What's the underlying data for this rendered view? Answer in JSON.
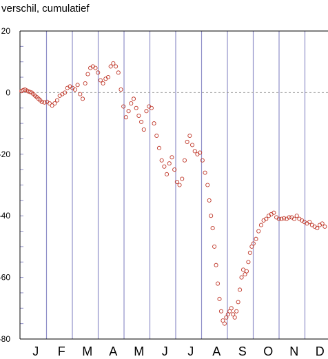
{
  "chart_data": {
    "type": "scatter",
    "title": "verschil, cumulatief",
    "xlabel": "",
    "ylabel": "",
    "ylim": [
      -80,
      20
    ],
    "yticks": [
      20,
      0,
      -20,
      -40,
      -60,
      -80
    ],
    "ytick_labels": [
      "20",
      "0",
      "-20",
      "-40",
      "-60",
      "-80"
    ],
    "xtick_labels": [
      "J",
      "F",
      "M",
      "A",
      "M",
      "J",
      "J",
      "A",
      "S",
      "O",
      "N",
      "D"
    ],
    "zero_line": "dashed",
    "grid": "vertical month lines",
    "marker": "open circle",
    "colors": {
      "marker": "#c0392b",
      "grid": "#8f8fc8",
      "zero": "#999999",
      "axis": "#000000"
    },
    "series": [
      {
        "x": [
          1,
          3,
          5,
          7,
          9,
          11,
          13,
          15,
          17,
          19,
          21,
          23,
          25,
          28,
          31,
          34,
          37,
          40,
          43,
          46,
          49,
          52,
          55,
          58,
          61,
          64,
          67,
          70,
          73,
          76,
          79,
          82,
          85,
          88,
          91,
          94,
          97,
          100,
          103,
          106,
          109,
          112,
          115,
          118,
          121,
          124,
          127,
          130,
          133,
          136,
          139,
          142,
          145,
          148,
          151,
          154,
          157,
          160,
          163,
          166,
          169,
          172,
          175,
          178,
          181,
          184,
          187,
          190,
          193,
          196,
          199,
          202,
          205,
          208,
          211,
          214,
          217,
          220,
          222,
          224,
          226,
          228,
          230,
          232,
          234,
          236,
          238,
          240,
          242,
          244,
          246,
          248,
          250,
          252,
          254,
          256,
          258,
          260,
          262,
          264,
          266,
          268,
          270,
          272,
          274,
          277,
          280,
          283,
          286,
          289,
          292,
          295,
          298,
          301,
          304,
          307,
          310,
          313,
          316,
          319,
          322,
          325,
          328,
          331,
          334,
          337,
          340,
          343,
          346,
          349,
          352,
          355,
          358,
          361,
          364
        ],
        "y": [
          0.5,
          0.8,
          1.0,
          0.7,
          0.4,
          0.2,
          0.0,
          -0.5,
          -1.0,
          -1.5,
          -2.0,
          -2.5,
          -3.0,
          -3.2,
          -3.0,
          -3.5,
          -4.2,
          -3.5,
          -2.5,
          -1.0,
          -0.5,
          0.0,
          1.5,
          2.0,
          1.5,
          1.0,
          2.5,
          -0.5,
          -2.0,
          3.0,
          6.0,
          8.0,
          8.5,
          8.0,
          6.5,
          4.0,
          3.0,
          4.5,
          5.0,
          8.5,
          9.5,
          8.5,
          6.5,
          1.0,
          -4.5,
          -8.0,
          -6.0,
          -3.5,
          -2.0,
          -5.0,
          -7.5,
          -9.5,
          -12.0,
          -6.0,
          -4.5,
          -5.0,
          -10.0,
          -14.0,
          -18.0,
          -22.0,
          -24.0,
          -26.5,
          -23.0,
          -21.0,
          -25.0,
          -29.0,
          -30.0,
          -28.0,
          -22.0,
          -16.0,
          -14.0,
          -17.0,
          -19.0,
          -20.0,
          -19.5,
          -22.0,
          -26.0,
          -30.0,
          -35.0,
          -40.0,
          -44.0,
          -50.0,
          -56.0,
          -62.0,
          -67.0,
          -71.0,
          -74.0,
          -75.0,
          -73.0,
          -72.0,
          -71.0,
          -70.0,
          -72.0,
          -73.0,
          -71.0,
          -68.0,
          -64.0,
          -60.0,
          -57.5,
          -59.0,
          -58.0,
          -55.0,
          -52.0,
          -50.0,
          -49.0,
          -47.5,
          -45.0,
          -43.0,
          -41.5,
          -41.0,
          -40.0,
          -39.5,
          -39.0,
          -40.5,
          -41.0,
          -41.0,
          -40.8,
          -41.0,
          -40.5,
          -40.5,
          -41.0,
          -40.0,
          -41.0,
          -41.5,
          -42.0,
          -42.5,
          -42.0,
          -43.0,
          -43.5,
          -44.0,
          -43.0,
          -42.5,
          -43.5,
          -44.5,
          -45.0
        ]
      }
    ]
  }
}
